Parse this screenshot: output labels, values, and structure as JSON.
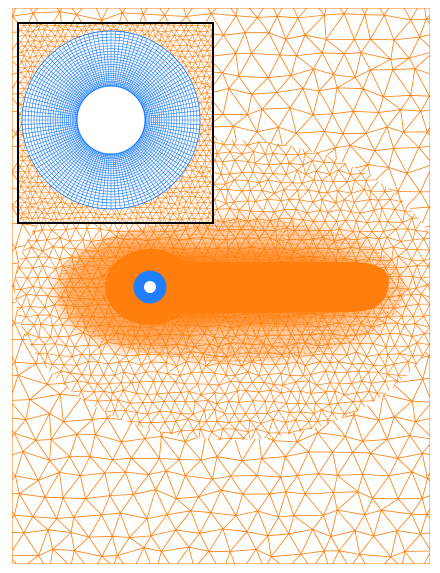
{
  "figure": {
    "description_colors": {
      "background": "#ffffff",
      "triangular_mesh": "#ff7f0e",
      "structured_mesh": "#1f7fff",
      "inset_frame": "#000000"
    },
    "elements": [
      "triangular-mesh-domain",
      "refined-wake-region",
      "cylinder-structured-mesh",
      "zoom-inset"
    ]
  }
}
